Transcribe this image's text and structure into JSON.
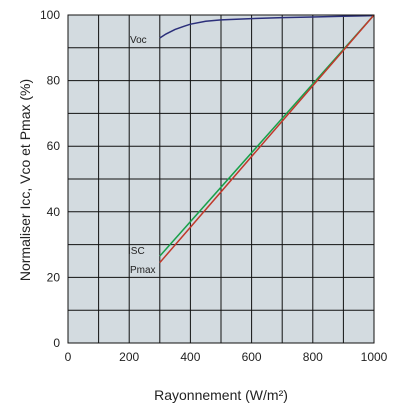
{
  "chart_data": {
    "type": "line",
    "xlabel": "Rayonnement (W/m²)",
    "ylabel": "Normaliser Icc,  Vco et Pmax  (%)",
    "xlim": [
      0,
      1000
    ],
    "ylim": [
      0,
      100
    ],
    "xticks": [
      0,
      200,
      400,
      600,
      800,
      1000
    ],
    "yticks": [
      0,
      20,
      40,
      60,
      80,
      100
    ],
    "x_tick_labels": [
      "0",
      "200",
      "400",
      "600",
      "800",
      "1000"
    ],
    "y_tick_labels": [
      "0",
      "20",
      "40",
      "60",
      "80",
      "100"
    ],
    "grid": true,
    "grid_x_step": 100,
    "grid_y_step": 10,
    "plot_background": "#d3dbe0",
    "series": [
      {
        "name": "Voc",
        "color": "#2b2f7a",
        "x": [
          300,
          320,
          350,
          380,
          400,
          450,
          500,
          600,
          700,
          800,
          900,
          1000
        ],
        "y": [
          93,
          94.2,
          95.6,
          96.6,
          97.2,
          98.1,
          98.5,
          98.9,
          99.2,
          99.4,
          99.6,
          99.8
        ]
      },
      {
        "name": "ISC",
        "color": "#18a04a",
        "x": [
          300,
          1000
        ],
        "y": [
          26.5,
          100
        ]
      },
      {
        "name": "Pmax",
        "color": "#c0392b",
        "x": [
          300,
          1000
        ],
        "y": [
          24.5,
          100
        ]
      }
    ]
  }
}
